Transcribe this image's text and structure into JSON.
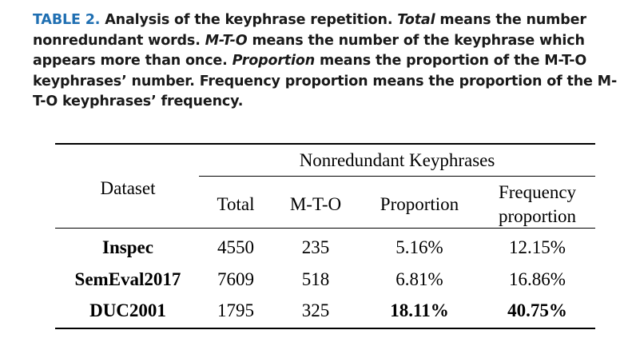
{
  "caption": {
    "label": "TABLE 2.",
    "s1": " Analysis of the keyphrase repetition. ",
    "t_total": "Total",
    "s2": " means the number nonredundant words. ",
    "t_mto": "M-T-O",
    "s3": " means the number of the keyphrase which appears more than once. ",
    "t_prop": "Proportion",
    "s4": " means the proportion of the M-T-O keyphrases’ number. Frequency proportion means the proportion of the M-T-O keyphrases’ frequency."
  },
  "table": {
    "group_header": "Nonredundant Keyphrases",
    "dataset_header": "Dataset",
    "columns": [
      "Total",
      "M-T-O",
      "Proportion",
      "Frequency",
      "proportion"
    ],
    "rows": [
      {
        "dataset": "Inspec",
        "total": "4550",
        "mto": "235",
        "proportion": "5.16%",
        "freq": "12.15%"
      },
      {
        "dataset": "SemEval2017",
        "total": "7609",
        "mto": "518",
        "proportion": "6.81%",
        "freq": "16.86%"
      },
      {
        "dataset": "DUC2001",
        "total": "1795",
        "mto": "325",
        "proportion": "18.11%",
        "freq": "40.75%"
      }
    ]
  }
}
